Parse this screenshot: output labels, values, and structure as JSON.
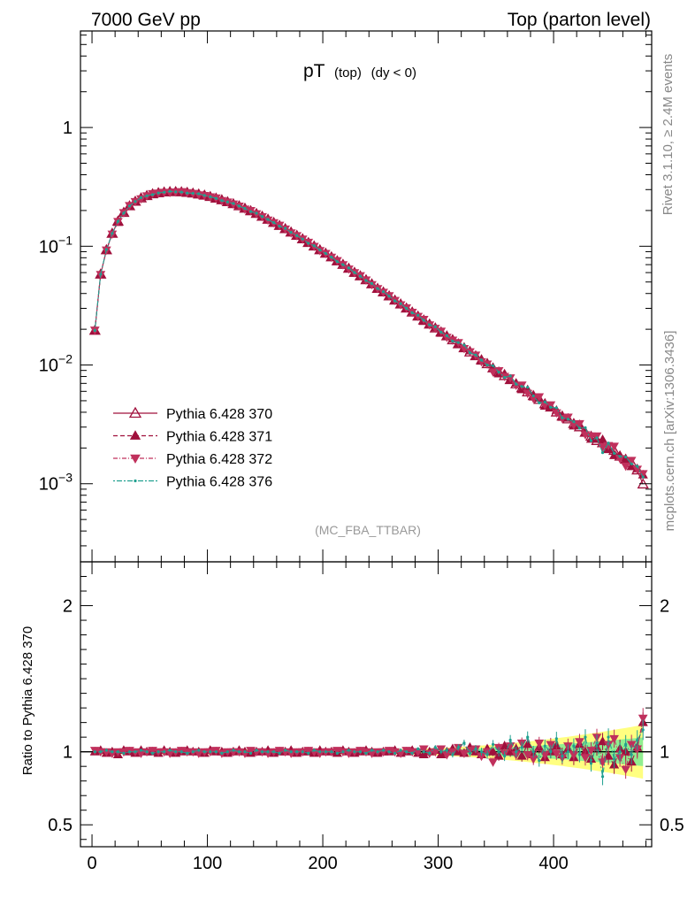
{
  "header": {
    "left": "7000 GeV pp",
    "right": "Top (parton level)"
  },
  "side_labels": {
    "rivet": "Rivet 3.1.10, ≥ 2.4M events",
    "mcplots": "mcplots.cern.ch [arXiv:1306.3436]"
  },
  "chart_data": [
    {
      "type": "line",
      "title_main": "pT",
      "title_sub": "(top)",
      "title_extra": "(dy < 0)",
      "watermark": "(MC_FBA_TTBAR)",
      "yscale": "log",
      "xlim": [
        -10,
        485
      ],
      "ylim": [
        0.00022,
        6.5
      ],
      "y_ticks": [
        {
          "value": 1,
          "label": "1"
        },
        {
          "value": 0.1,
          "label": "10^-1"
        },
        {
          "value": 0.01,
          "label": "10^-2"
        },
        {
          "value": 0.001,
          "label": "10^-3"
        }
      ],
      "legend_position": "lower-left",
      "x": [
        2.5,
        7.5,
        12.5,
        17.5,
        22.5,
        27.5,
        32.5,
        37.5,
        42.5,
        47.5,
        52.5,
        57.5,
        62.5,
        67.5,
        72.5,
        77.5,
        82.5,
        87.5,
        92.5,
        97.5,
        102.5,
        107.5,
        112.5,
        117.5,
        122.5,
        127.5,
        132.5,
        137.5,
        142.5,
        147.5,
        152.5,
        157.5,
        162.5,
        167.5,
        172.5,
        177.5,
        182.5,
        187.5,
        192.5,
        197.5,
        202.5,
        207.5,
        212.5,
        217.5,
        222.5,
        227.5,
        232.5,
        237.5,
        242.5,
        247.5,
        252.5,
        257.5,
        262.5,
        267.5,
        272.5,
        277.5,
        282.5,
        287.5,
        292.5,
        297.5,
        302.5,
        307.5,
        312.5,
        317.5,
        322.5,
        327.5,
        332.5,
        337.5,
        342.5,
        347.5,
        352.5,
        357.5,
        362.5,
        367.5,
        372.5,
        377.5,
        382.5,
        387.5,
        392.5,
        397.5,
        402.5,
        407.5,
        412.5,
        417.5,
        422.5,
        427.5,
        432.5,
        437.5,
        442.5,
        447.5,
        452.5,
        457.5,
        462.5,
        467.5,
        472.5,
        477.5
      ],
      "series": [
        {
          "name": "Pythia 6.428 370",
          "color": "#a0103c",
          "marker": "triangle-up-open",
          "dash": "solid",
          "values": [
            0.0195,
            0.058,
            0.093,
            0.128,
            0.162,
            0.192,
            0.218,
            0.238,
            0.254,
            0.266,
            0.275,
            0.281,
            0.285,
            0.287,
            0.287,
            0.286,
            0.283,
            0.279,
            0.274,
            0.268,
            0.261,
            0.253,
            0.245,
            0.236,
            0.227,
            0.218,
            0.208,
            0.198,
            0.188,
            0.178,
            0.168,
            0.158,
            0.149,
            0.14,
            0.131,
            0.123,
            0.115,
            0.107,
            0.1,
            0.093,
            0.087,
            0.081,
            0.075,
            0.07,
            0.065,
            0.06,
            0.056,
            0.052,
            0.048,
            0.044,
            0.041,
            0.038,
            0.035,
            0.0325,
            0.03,
            0.0278,
            0.0257,
            0.0238,
            0.022,
            0.0204,
            0.0189,
            0.0175,
            0.0162,
            0.015,
            0.0139,
            0.0128,
            0.0119,
            0.011,
            0.0102,
            0.0094,
            0.0087,
            0.0081,
            0.0075,
            0.0069,
            0.0064,
            0.0059,
            0.0055,
            0.0051,
            0.0047,
            0.0044,
            0.004,
            0.0037,
            0.0035,
            0.0032,
            0.003,
            0.0027,
            0.0025,
            0.0023,
            0.0022,
            0.002,
            0.0019,
            0.0017,
            0.0016,
            0.0015,
            0.0013,
            0.00099
          ],
          "ratio": [
            1,
            1,
            1,
            1,
            1,
            1,
            1,
            1,
            1,
            1,
            1,
            1,
            1,
            1,
            1,
            1,
            1,
            1,
            1,
            1,
            1,
            1,
            1,
            1,
            1,
            1,
            1,
            1,
            1,
            1,
            1,
            1,
            1,
            1,
            1,
            1,
            1,
            1,
            1,
            1,
            1,
            1,
            1,
            1,
            1,
            1,
            1,
            1,
            1,
            1,
            1,
            1,
            1,
            1,
            1,
            1,
            1,
            1,
            1,
            1,
            1,
            1,
            1,
            1,
            1,
            1,
            1,
            1,
            1,
            1,
            1,
            1,
            1,
            1,
            1,
            1,
            1,
            1,
            1,
            1,
            1,
            1,
            1,
            1,
            1,
            1,
            1,
            1,
            1,
            1,
            1,
            1,
            1,
            1,
            1,
            1
          ]
        },
        {
          "name": "Pythia 6.428 371",
          "color": "#a0103c",
          "marker": "triangle-up-filled",
          "dash": "5,3",
          "ratio": [
            1.0,
            1.01,
            0.99,
            1.0,
            0.98,
            1.01,
            1.0,
            0.99,
            1.01,
            1.0,
            1.0,
            0.99,
            1.01,
            1.0,
            0.99,
            1.0,
            1.01,
            1.0,
            1.0,
            0.99,
            1.01,
            1.0,
            1.0,
            0.99,
            1.0,
            1.01,
            1.0,
            0.99,
            1.0,
            1.0,
            1.01,
            0.99,
            1.0,
            1.0,
            1.01,
            0.99,
            1.0,
            1.0,
            0.99,
            1.01,
            1.0,
            1.0,
            0.99,
            1.01,
            1.0,
            0.99,
            1.0,
            1.01,
            1.0,
            0.99,
            1.0,
            1.0,
            1.01,
            0.99,
            1.0,
            1.01,
            0.99,
            0.98,
            1.0,
            1.01,
            0.98,
            1.0,
            1.02,
            1.0,
            0.99,
            1.03,
            1.0,
            0.98,
            1.02,
            1.0,
            0.97,
            1.04,
            1.0,
            1.02,
            0.97,
            1.05,
            0.98,
            1.03,
            0.96,
            1.0,
            1.04,
            0.98,
            1.02,
            0.96,
            1.05,
            1.0,
            0.95,
            1.03,
            1.07,
            0.97,
            0.91,
            1.02,
            1.0,
            0.93,
            1.03,
            1.2
          ]
        },
        {
          "name": "Pythia 6.428 372",
          "color": "#c0305c",
          "marker": "triangle-down-filled",
          "dash": "5,2,1,2",
          "ratio": [
            1.01,
            1.0,
            1.0,
            0.99,
            1.0,
            1.0,
            1.01,
            1.0,
            0.99,
            1.0,
            1.01,
            1.0,
            1.0,
            0.99,
            1.0,
            1.01,
            1.0,
            1.0,
            0.99,
            1.0,
            1.0,
            1.01,
            0.99,
            1.0,
            1.0,
            1.0,
            0.99,
            1.01,
            1.0,
            1.0,
            0.99,
            1.0,
            1.01,
            1.0,
            0.99,
            1.0,
            1.0,
            1.01,
            1.0,
            0.99,
            1.0,
            1.0,
            1.01,
            1.0,
            0.99,
            1.0,
            1.01,
            1.0,
            0.99,
            1.0,
            1.0,
            1.01,
            1.0,
            0.99,
            1.01,
            1.0,
            1.0,
            1.02,
            0.99,
            1.0,
            1.02,
            0.98,
            1.0,
            1.03,
            0.99,
            1.01,
            1.02,
            0.97,
            1.0,
            0.93,
            1.03,
            0.99,
            1.04,
            0.98,
            1.06,
            0.98,
            0.95,
            1.06,
            0.98,
            1.05,
            0.99,
            0.96,
            1.04,
            0.98,
            1.07,
            0.96,
            1.01,
            1.1,
            0.93,
            1.05,
            1.09,
            0.96,
            0.88,
            1.05,
            1.02,
            1.23
          ]
        },
        {
          "name": "Pythia 6.428 376",
          "color": "#20a090",
          "marker": "dot",
          "dash": "2,2,6,2",
          "ratio": [
            1.0,
            1.0,
            1.01,
            1.0,
            1.0,
            0.99,
            1.0,
            1.0,
            1.01,
            1.0,
            0.99,
            1.0,
            1.0,
            1.01,
            1.0,
            1.0,
            0.99,
            1.0,
            1.01,
            1.0,
            1.0,
            1.0,
            0.99,
            1.0,
            1.01,
            1.0,
            1.0,
            0.99,
            1.01,
            1.0,
            1.0,
            1.0,
            0.99,
            1.01,
            1.0,
            1.0,
            1.0,
            0.99,
            1.01,
            1.0,
            1.0,
            1.0,
            0.99,
            1.0,
            1.01,
            1.0,
            1.0,
            0.99,
            1.01,
            1.0,
            1.01,
            1.0,
            0.99,
            1.01,
            1.0,
            0.99,
            1.02,
            1.0,
            0.99,
            1.03,
            1.0,
            1.01,
            0.98,
            1.03,
            1.06,
            0.99,
            1.02,
            1.0,
            0.98,
            1.05,
            1.0,
            0.97,
            1.08,
            1.0,
            1.03,
            1.1,
            1.0,
            0.94,
            1.04,
            1.0,
            1.09,
            0.97,
            1.0,
            1.04,
            0.98,
            1.1,
            0.92,
            1.06,
            0.83,
            1.1,
            0.95,
            1.0,
            1.05,
            0.98,
            1.08,
            1.15
          ]
        }
      ]
    },
    {
      "type": "line",
      "ylabel": "Ratio to Pythia 6.428 370",
      "xlim": [
        -10,
        485
      ],
      "ylim": [
        0.35,
        2.3
      ],
      "x_ticks": [
        "0",
        "100",
        "200",
        "300",
        "400"
      ],
      "y_ticks": [
        {
          "value": 2,
          "label": "2"
        },
        {
          "value": 1,
          "label": "1"
        },
        {
          "value": 0.5,
          "label": "0.5"
        }
      ],
      "reference_line": 1
    }
  ]
}
